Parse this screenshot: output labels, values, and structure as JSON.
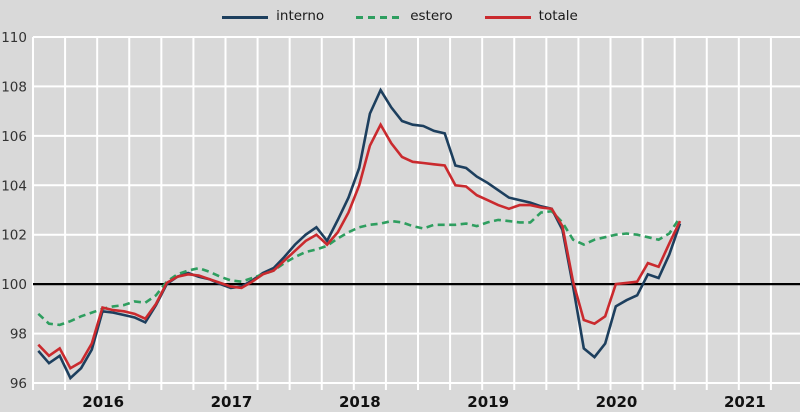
{
  "colors": {
    "background": "#d9d9d9",
    "grid": "#ffffff",
    "baseline": "#000000",
    "tick_text": "#333333",
    "year_text": "#111111",
    "interno": "#1d3f5e",
    "estero": "#2e9e5f",
    "totale": "#ca2a2e"
  },
  "legend": {
    "items": [
      {
        "label": "interno",
        "color": "#1d3f5e",
        "style": "solid"
      },
      {
        "label": "estero",
        "color": "#2e9e5f",
        "style": "dashed"
      },
      {
        "label": "totale",
        "color": "#ca2a2e",
        "style": "solid"
      }
    ]
  },
  "chart_data": {
    "type": "line",
    "title": "",
    "xlabel": "",
    "ylabel": "",
    "ylim": [
      96,
      110
    ],
    "y_ticks": [
      96,
      98,
      100,
      102,
      104,
      106,
      108,
      110
    ],
    "baseline": 100,
    "grid": "white gridlines on gray; vertical lines quarterly with small ticks below axis",
    "legend_position": "top-center",
    "x_frequency": "monthly",
    "x_axis_years": [
      "2016",
      "2017",
      "2018",
      "2019",
      "2020",
      "2021"
    ],
    "x_axis_span_months": 72,
    "x_data_range": [
      "2016-01",
      "2021-01"
    ],
    "series": [
      {
        "name": "interno",
        "color": "#1d3f5e",
        "dash": "solid",
        "values": [
          97.3,
          96.8,
          97.1,
          96.2,
          96.6,
          97.35,
          98.9,
          98.85,
          98.75,
          98.65,
          98.45,
          99.15,
          100.0,
          100.3,
          100.45,
          100.3,
          100.2,
          100.0,
          99.85,
          99.9,
          100.15,
          100.45,
          100.65,
          101.1,
          101.6,
          102.0,
          102.3,
          101.75,
          102.6,
          103.5,
          104.7,
          106.9,
          107.85,
          107.15,
          106.6,
          106.45,
          106.4,
          106.2,
          106.1,
          104.8,
          104.7,
          104.35,
          104.1,
          103.8,
          103.5,
          103.4,
          103.3,
          103.15,
          103.05,
          102.2,
          99.9,
          97.4,
          97.05,
          97.6,
          99.1,
          99.35,
          99.55,
          100.4,
          100.25,
          101.2,
          102.45
        ]
      },
      {
        "name": "estero",
        "color": "#2e9e5f",
        "dash": "dashed",
        "values": [
          98.8,
          98.4,
          98.35,
          98.5,
          98.7,
          98.85,
          99.0,
          99.1,
          99.15,
          99.3,
          99.25,
          99.55,
          100.1,
          100.4,
          100.55,
          100.65,
          100.5,
          100.3,
          100.15,
          100.1,
          100.25,
          100.4,
          100.55,
          100.85,
          101.1,
          101.3,
          101.4,
          101.55,
          101.85,
          102.1,
          102.3,
          102.4,
          102.45,
          102.55,
          102.5,
          102.35,
          102.25,
          102.4,
          102.4,
          102.4,
          102.45,
          102.35,
          102.5,
          102.6,
          102.55,
          102.5,
          102.5,
          102.9,
          102.95,
          102.5,
          101.8,
          101.6,
          101.8,
          101.9,
          102.0,
          102.05,
          102.0,
          101.9,
          101.8,
          102.05,
          102.7
        ]
      },
      {
        "name": "totale",
        "color": "#ca2a2e",
        "dash": "solid",
        "values": [
          97.55,
          97.1,
          97.4,
          96.6,
          96.85,
          97.6,
          99.05,
          98.95,
          98.9,
          98.8,
          98.6,
          99.2,
          100.05,
          100.3,
          100.4,
          100.35,
          100.2,
          100.05,
          99.9,
          99.85,
          100.1,
          100.4,
          100.55,
          100.95,
          101.35,
          101.75,
          102.0,
          101.6,
          102.1,
          102.9,
          104.0,
          105.6,
          106.45,
          105.7,
          105.15,
          104.95,
          104.9,
          104.85,
          104.8,
          104.0,
          103.95,
          103.6,
          103.4,
          103.2,
          103.05,
          103.2,
          103.2,
          103.1,
          103.05,
          102.35,
          100.1,
          98.55,
          98.4,
          98.7,
          100.0,
          100.05,
          100.1,
          100.85,
          100.7,
          101.65,
          102.55
        ]
      }
    ]
  }
}
